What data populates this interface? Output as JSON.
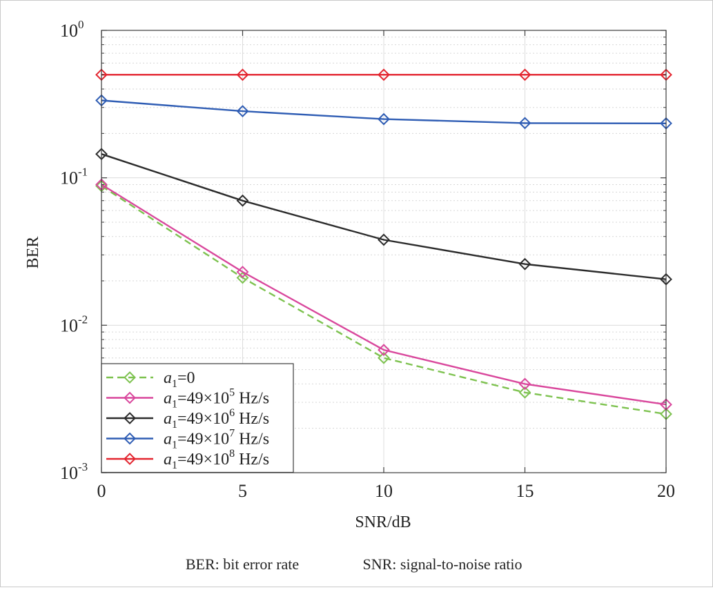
{
  "chart_data": {
    "type": "line",
    "xlabel": "SNR/dB",
    "ylabel": "BER",
    "x_scale": "linear",
    "y_scale": "log",
    "xlim": [
      0,
      20
    ],
    "ylim": [
      0.001,
      1
    ],
    "x_ticks": [
      0,
      5,
      10,
      15,
      20
    ],
    "x_tick_labels": [
      "0",
      "5",
      "10",
      "15",
      "20"
    ],
    "y_ticks": [
      0.001,
      0.01,
      0.1,
      1
    ],
    "y_tick_labels": [
      {
        "base": "10",
        "exp": "-3"
      },
      {
        "base": "10",
        "exp": "-2"
      },
      {
        "base": "10",
        "exp": "-1"
      },
      {
        "base": "10",
        "exp": "0"
      }
    ],
    "grid": true,
    "legend_position": "bottom-left",
    "marker": "diamond",
    "x": [
      0,
      5,
      10,
      15,
      20
    ],
    "series": [
      {
        "name": "a1=0",
        "legend": {
          "var": "a",
          "sub": "1",
          "text": "=0",
          "sup": "",
          "unit": ""
        },
        "values": [
          0.088,
          0.021,
          0.006,
          0.0035,
          0.0025
        ],
        "color": "#7dc24f",
        "dashed": true
      },
      {
        "name": "a1=49×10^5 Hz/s",
        "legend": {
          "var": "a",
          "sub": "1",
          "text": "=49×10",
          "sup": "5",
          "unit": " Hz/s"
        },
        "values": [
          0.09,
          0.023,
          0.0068,
          0.004,
          0.0029
        ],
        "color": "#d9479c",
        "dashed": false
      },
      {
        "name": "a1=49×10^6 Hz/s",
        "legend": {
          "var": "a",
          "sub": "1",
          "text": "=49×10",
          "sup": "6",
          "unit": " Hz/s"
        },
        "values": [
          0.145,
          0.07,
          0.038,
          0.026,
          0.0205
        ],
        "color": "#2b2b2b",
        "dashed": false
      },
      {
        "name": "a1=49×10^7 Hz/s",
        "legend": {
          "var": "a",
          "sub": "1",
          "text": "=49×10",
          "sup": "7",
          "unit": " Hz/s"
        },
        "values": [
          0.335,
          0.283,
          0.25,
          0.235,
          0.234
        ],
        "color": "#2f5db4",
        "dashed": false
      },
      {
        "name": "a1=49×10^8 Hz/s",
        "legend": {
          "var": "a",
          "sub": "1",
          "text": "=49×10",
          "sup": "8",
          "unit": " Hz/s"
        },
        "values": [
          0.5,
          0.5,
          0.5,
          0.5,
          0.5
        ],
        "color": "#e3252f",
        "dashed": false
      }
    ]
  },
  "caption": {
    "ber_note": "BER: bit error rate",
    "snr_note": "SNR: signal-to-noise ratio"
  }
}
